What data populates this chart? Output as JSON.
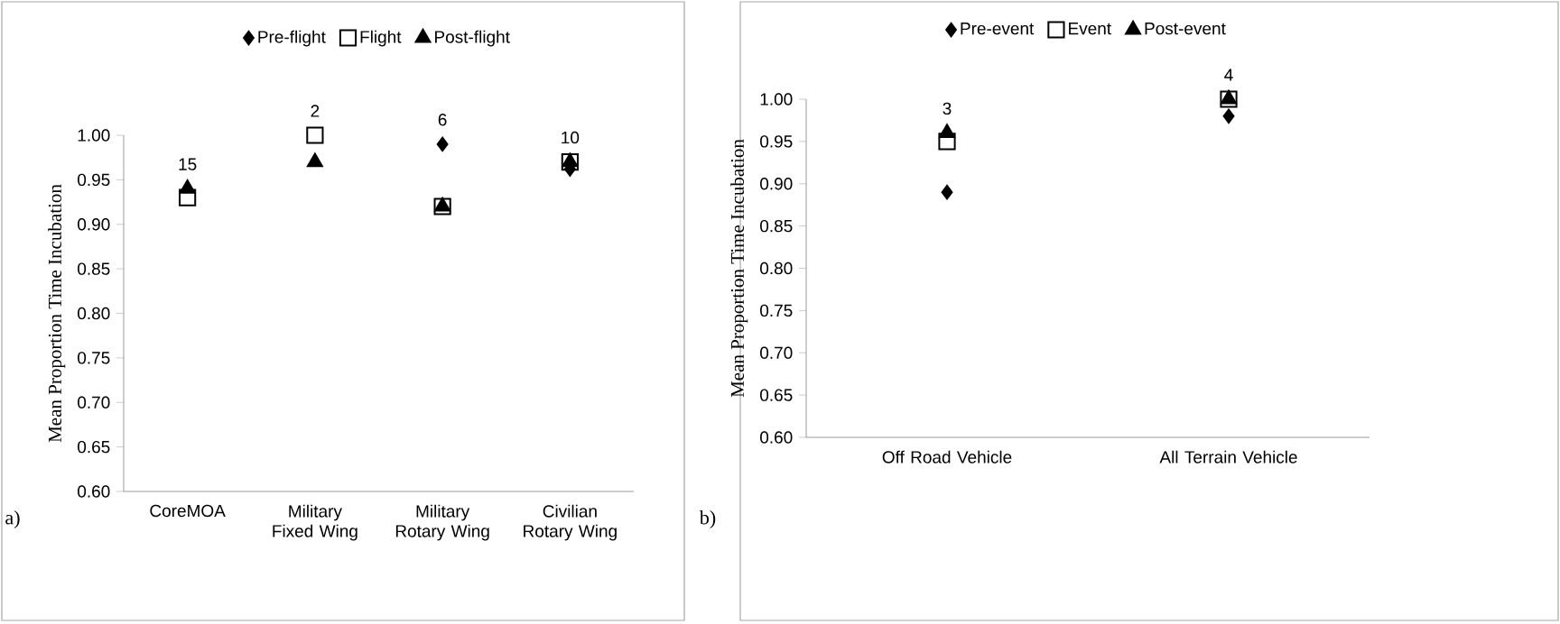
{
  "chart_data": [
    {
      "type": "scatter",
      "ylabel": "Mean Proportion Time Incubation",
      "categories": [
        "CoreMOA",
        "Military Fixed Wing",
        "Military Rotary Wing",
        "Civilian Rotary Wing"
      ],
      "series": [
        {
          "name": "Pre-flight",
          "color": "#000000",
          "marker": "diamond",
          "values": [
            null,
            null,
            0.99,
            0.962
          ]
        },
        {
          "name": "Flight",
          "color": "#000000",
          "marker": "square",
          "values": [
            0.93,
            1.0,
            0.92,
            0.97
          ]
        },
        {
          "name": "Post-flight",
          "color": "#000000",
          "marker": "triangle",
          "values": [
            0.94,
            0.97,
            0.92,
            0.97
          ]
        }
      ],
      "ylim": [
        0.6,
        1.0
      ],
      "yticks": [
        {
          "value": 0.6,
          "label": "0.60"
        },
        {
          "value": 0.65,
          "label": "0.65"
        },
        {
          "value": 0.7,
          "label": "0.70"
        },
        {
          "value": 0.75,
          "label": "0.75"
        },
        {
          "value": 0.8,
          "label": "0.80"
        },
        {
          "value": 0.85,
          "label": "0.85"
        },
        {
          "value": 0.9,
          "label": "0.90"
        },
        {
          "value": 0.95,
          "label": "0.95"
        },
        {
          "value": 1.0,
          "label": "1.00"
        }
      ],
      "legend": "top",
      "annotations": [
        "a)",
        {
          "text": "15",
          "x": "CoreMOA",
          "y": 0.94
        },
        {
          "text": "2",
          "x": "Military Fixed Wing",
          "y": 1.0
        },
        {
          "text": "6",
          "x": "Military Rotary Wing",
          "y": 0.99
        },
        {
          "text": "10",
          "x": "Civilian Rotary Wing",
          "y": 0.97
        }
      ]
    },
    {
      "type": "scatter",
      "ylabel": "Mean Proportion Time Incubation",
      "categories": [
        "Off Road Vehicle",
        "All Terrain Vehicle"
      ],
      "series": [
        {
          "name": "Pre-event",
          "color": "#000000",
          "marker": "diamond",
          "values": [
            0.89,
            0.98
          ]
        },
        {
          "name": "Event",
          "color": "#000000",
          "marker": "square",
          "values": [
            0.95,
            1.0
          ]
        },
        {
          "name": "Post-event",
          "color": "#000000",
          "marker": "triangle",
          "values": [
            0.96,
            1.0
          ]
        }
      ],
      "ylim": [
        0.6,
        1.0
      ],
      "yticks": [
        {
          "value": 0.6,
          "label": "0.60"
        },
        {
          "value": 0.65,
          "label": "0.65"
        },
        {
          "value": 0.7,
          "label": "0.70"
        },
        {
          "value": 0.75,
          "label": "0.75"
        },
        {
          "value": 0.8,
          "label": "0.80"
        },
        {
          "value": 0.85,
          "label": "0.85"
        },
        {
          "value": 0.9,
          "label": "0.90"
        },
        {
          "value": 0.95,
          "label": "0.95"
        },
        {
          "value": 1.0,
          "label": "1.00"
        }
      ],
      "legend": "top",
      "annotations": [
        "b)",
        {
          "text": "3",
          "x": "Off Road Vehicle",
          "y": 0.96
        },
        {
          "text": "4",
          "x": "All Terrain Vehicle",
          "y": 1.0
        }
      ]
    }
  ]
}
